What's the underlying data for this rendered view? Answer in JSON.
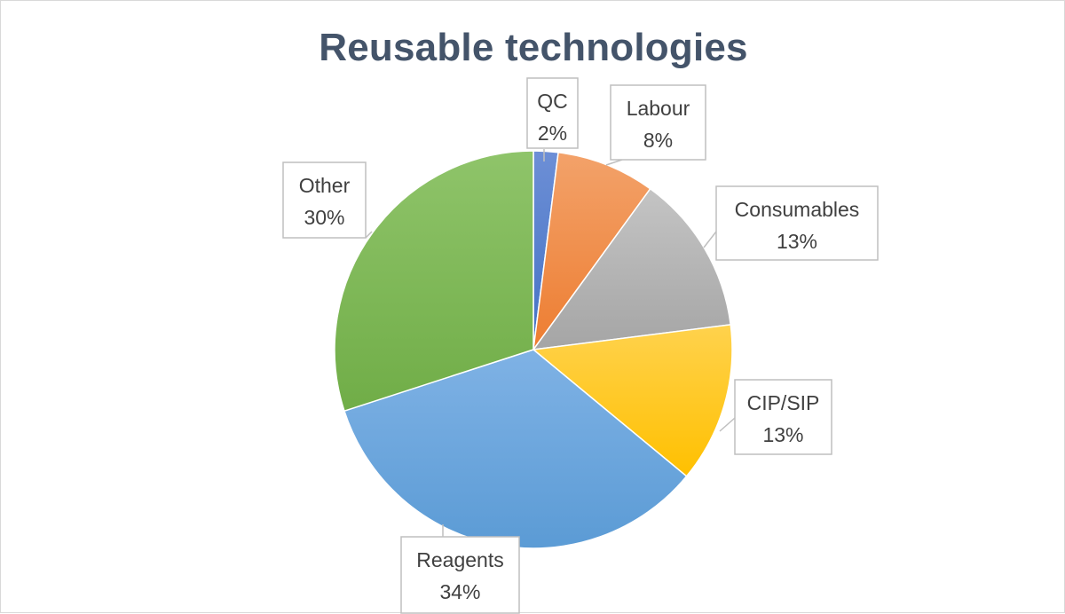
{
  "chart_data": {
    "type": "pie",
    "title": "Reusable technologies",
    "start_angle_deg": 0,
    "direction": "clockwise",
    "slices": [
      {
        "name": "QC",
        "value": 2,
        "label": "2%",
        "color": "#4472c4",
        "color_light": "#6d8fd6"
      },
      {
        "name": "Labour",
        "value": 8,
        "label": "8%",
        "color": "#ed7d31",
        "color_light": "#f3a26a"
      },
      {
        "name": "Consumables",
        "value": 13,
        "label": "13%",
        "color": "#a5a5a5",
        "color_light": "#c4c4c4"
      },
      {
        "name": "CIP/SIP",
        "value": 13,
        "label": "13%",
        "color": "#ffc000",
        "color_light": "#ffd24d"
      },
      {
        "name": "Reagents",
        "value": 34,
        "label": "34%",
        "color": "#5b9bd5",
        "color_light": "#7fb2e5"
      },
      {
        "name": "Other",
        "value": 30,
        "label": "30%",
        "color": "#70ad47",
        "color_light": "#8fc46a"
      }
    ],
    "data_labels": "callouts",
    "legend": "none"
  }
}
